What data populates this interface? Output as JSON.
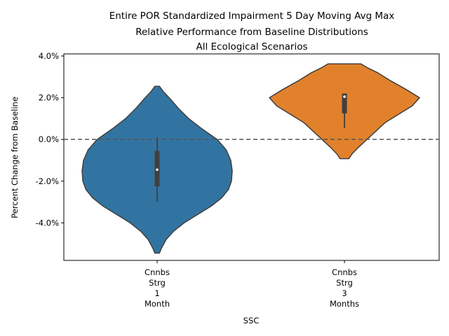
{
  "chart_data": {
    "type": "violin",
    "title_lines": [
      "Entire POR Standardized Impairment 5 Day Moving Avg Max",
      "Relative Performance from Baseline Distributions",
      "All Ecological Scenarios"
    ],
    "xlabel": "SSC",
    "ylabel": "Percent Change from Baseline",
    "ylim": [
      -5.8,
      4.1
    ],
    "yticks": [
      -4.0,
      -2.0,
      0.0,
      2.0,
      4.0
    ],
    "ytick_labels": [
      "-4.0%",
      "-2.0%",
      "0.0%",
      "2.0%",
      "4.0%"
    ],
    "reference_line": {
      "y": 0.0,
      "style": "dashed"
    },
    "series": [
      {
        "category_lines": [
          "Cnnbs",
          "Strg",
          "1",
          "Month"
        ],
        "color": "#3274a1",
        "median": -1.45,
        "q1": -2.25,
        "q3": -0.55,
        "whisker_low": -3.0,
        "whisker_high": 0.1,
        "kde_min": -5.45,
        "kde_max": 2.55,
        "profile": [
          [
            -5.45,
            0.03
          ],
          [
            -5.2,
            0.06
          ],
          [
            -4.8,
            0.12
          ],
          [
            -4.4,
            0.22
          ],
          [
            -4.0,
            0.36
          ],
          [
            -3.6,
            0.54
          ],
          [
            -3.2,
            0.72
          ],
          [
            -2.8,
            0.86
          ],
          [
            -2.4,
            0.95
          ],
          [
            -2.0,
            0.99
          ],
          [
            -1.5,
            1.0
          ],
          [
            -1.0,
            0.98
          ],
          [
            -0.5,
            0.92
          ],
          [
            0.0,
            0.8
          ],
          [
            0.5,
            0.6
          ],
          [
            1.0,
            0.42
          ],
          [
            1.5,
            0.28
          ],
          [
            2.0,
            0.16
          ],
          [
            2.3,
            0.08
          ],
          [
            2.55,
            0.03
          ]
        ]
      },
      {
        "category_lines": [
          "Cnnbs",
          "Strg",
          "3",
          "Months"
        ],
        "color": "#e1812c",
        "median": 2.05,
        "q1": 1.25,
        "q3": 2.2,
        "whisker_low": 0.55,
        "whisker_high": 2.2,
        "kde_min": -0.92,
        "kde_max": 3.62,
        "profile": [
          [
            -0.92,
            0.06
          ],
          [
            -0.7,
            0.1
          ],
          [
            -0.4,
            0.18
          ],
          [
            0.0,
            0.3
          ],
          [
            0.4,
            0.42
          ],
          [
            0.8,
            0.54
          ],
          [
            1.2,
            0.72
          ],
          [
            1.6,
            0.9
          ],
          [
            2.0,
            1.0
          ],
          [
            2.4,
            0.82
          ],
          [
            2.8,
            0.62
          ],
          [
            3.2,
            0.44
          ],
          [
            3.45,
            0.3
          ],
          [
            3.62,
            0.22
          ]
        ]
      }
    ]
  }
}
